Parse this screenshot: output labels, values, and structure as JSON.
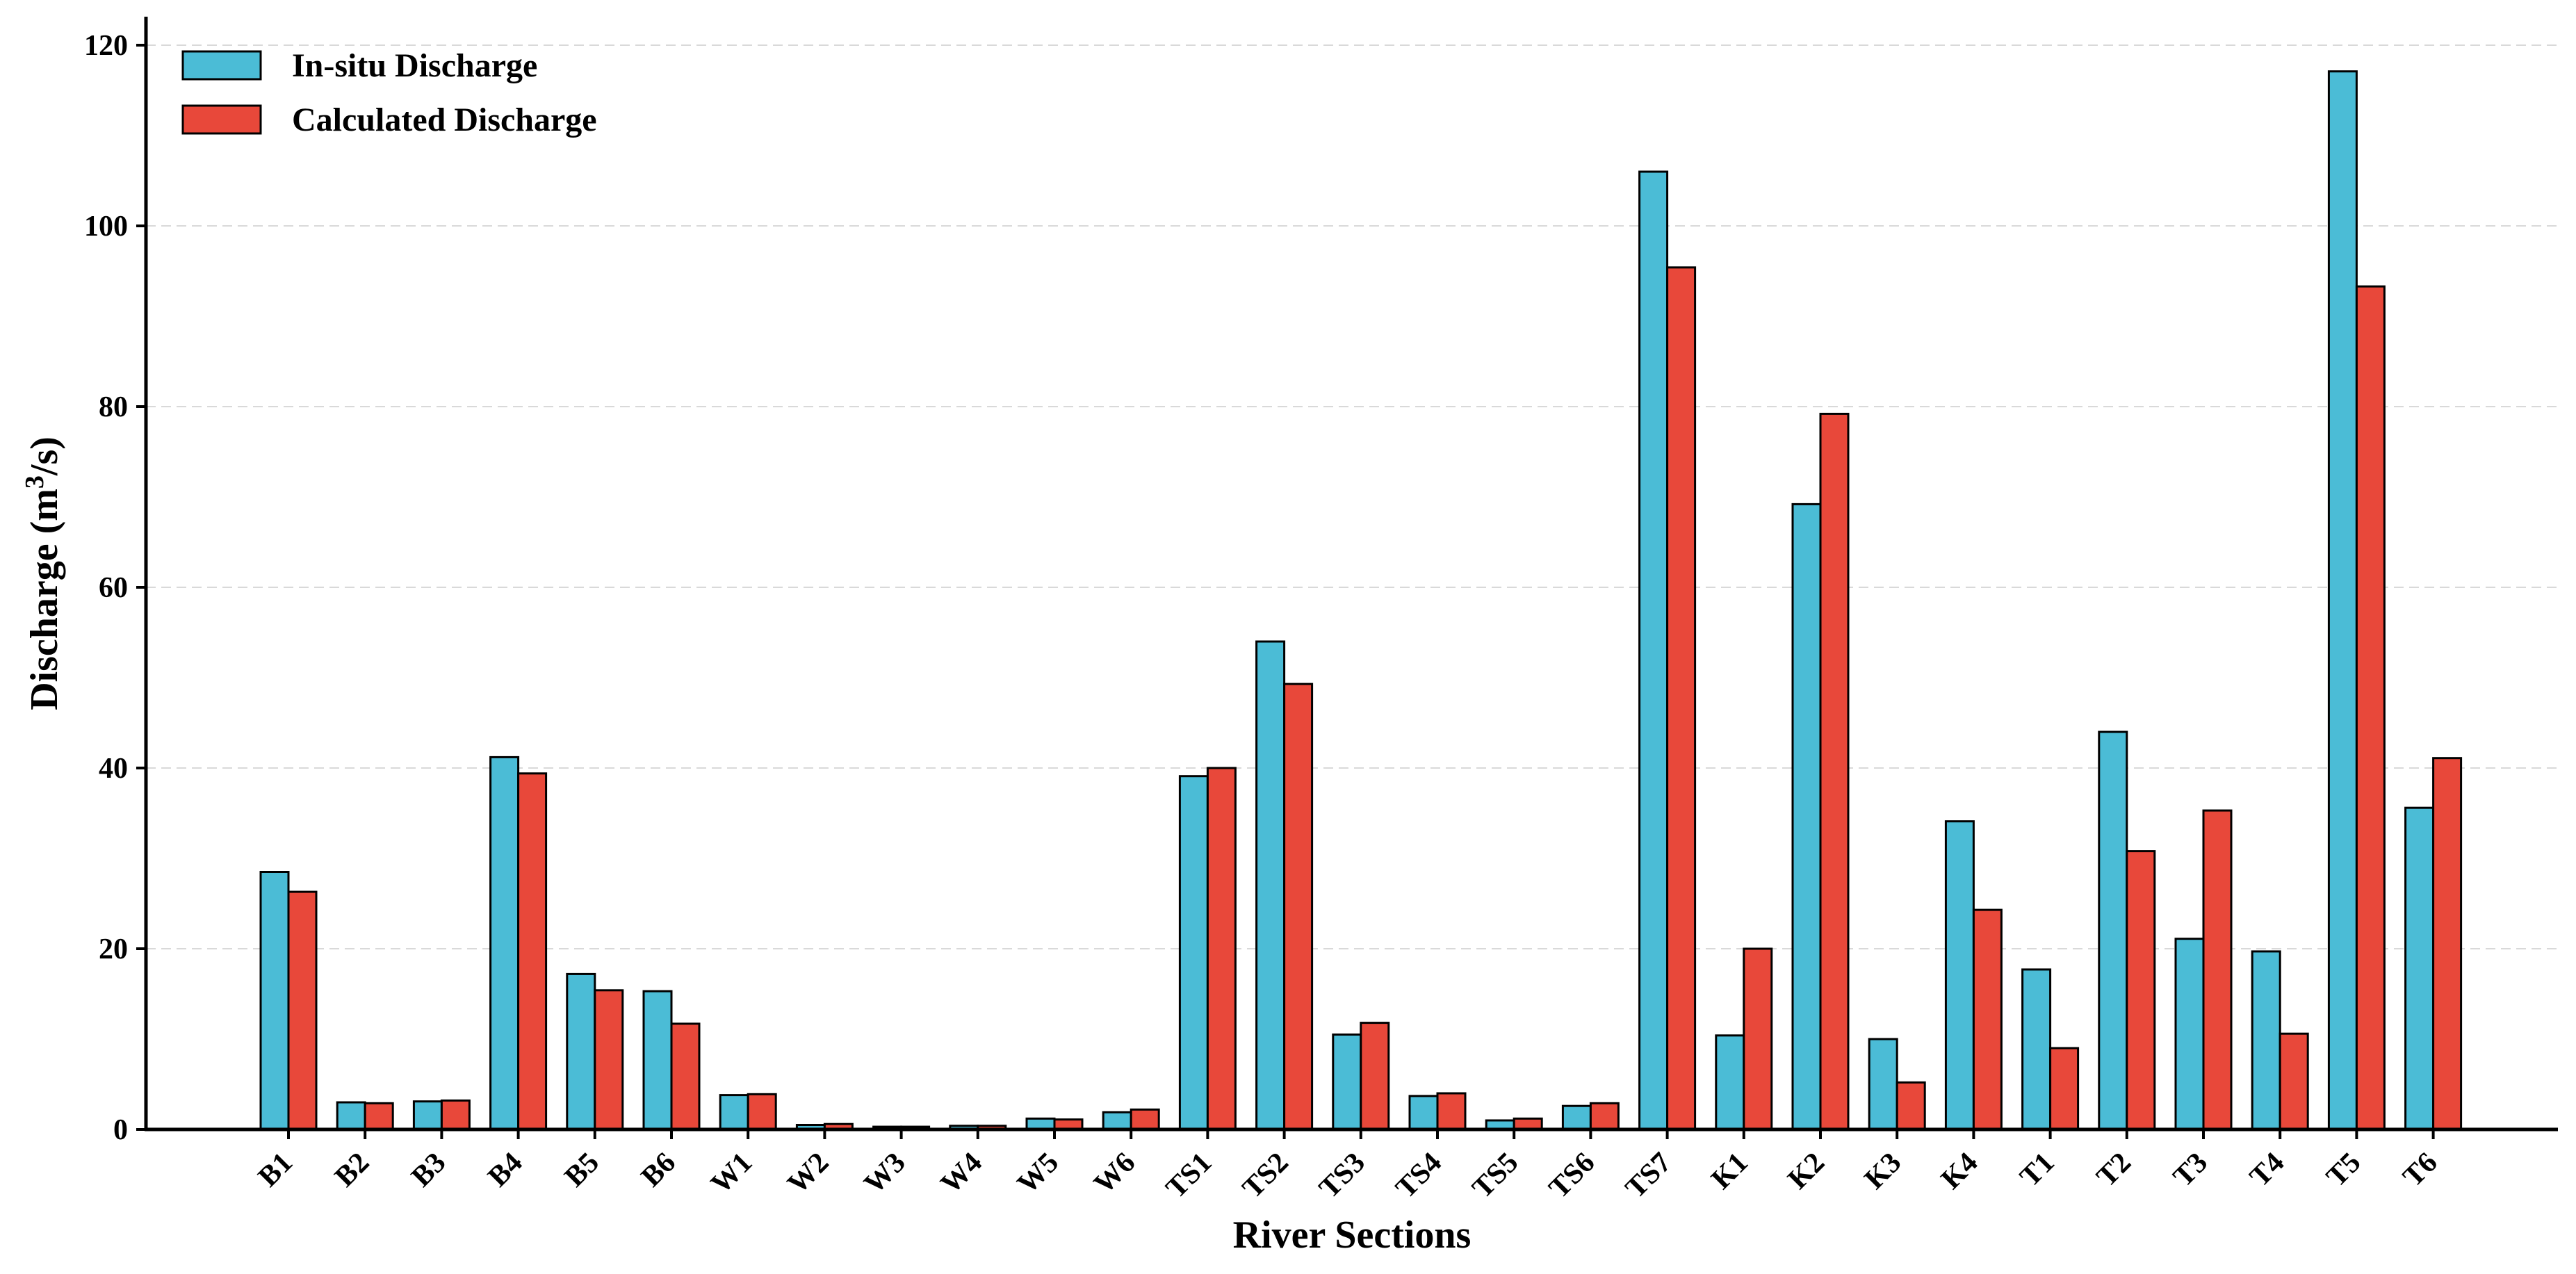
{
  "chart_data": {
    "type": "bar",
    "xlabel": "River Sections",
    "ylabel": {
      "prefix": "Discharge (m",
      "superscript": "3",
      "suffix": "/s)"
    },
    "ylim": [
      0,
      124
    ],
    "yticks": [
      0,
      20,
      40,
      60,
      80,
      100,
      120
    ],
    "grid": "horizontal dashed",
    "legend_position": "top-left",
    "categories": [
      "B1",
      "B2",
      "B3",
      "B4",
      "B5",
      "B6",
      "W1",
      "W2",
      "W3",
      "W4",
      "W5",
      "W6",
      "TS1",
      "TS2",
      "TS3",
      "TS4",
      "TS5",
      "TS6",
      "TS7",
      "K1",
      "K2",
      "K3",
      "K4",
      "T1",
      "T2",
      "T3",
      "T4",
      "T5",
      "T6"
    ],
    "series": [
      {
        "name": "In-situ Discharge",
        "color": "#4BBCD6",
        "values": [
          28.5,
          3.0,
          3.1,
          41.2,
          17.2,
          15.3,
          3.8,
          0.5,
          0.3,
          0.4,
          1.2,
          1.9,
          39.1,
          54.0,
          10.5,
          3.7,
          1.0,
          2.6,
          106.0,
          10.4,
          69.2,
          10.0,
          34.1,
          17.7,
          44.0,
          21.1,
          19.7,
          117.1,
          35.6
        ]
      },
      {
        "name": "Calculated Discharge",
        "color": "#E8483A",
        "values": [
          26.3,
          2.9,
          3.2,
          39.4,
          15.4,
          11.7,
          3.9,
          0.6,
          0.3,
          0.4,
          1.1,
          2.2,
          40.0,
          49.3,
          11.8,
          4.0,
          1.2,
          2.9,
          95.4,
          20.0,
          79.2,
          5.2,
          24.3,
          9.0,
          30.8,
          35.3,
          10.6,
          93.3,
          41.1
        ]
      }
    ]
  }
}
